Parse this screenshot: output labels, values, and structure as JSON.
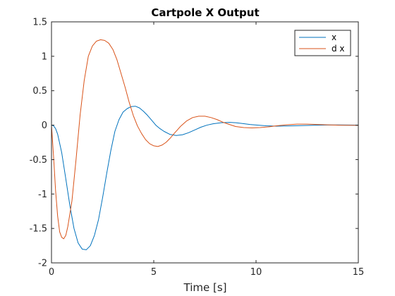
{
  "chart_data": {
    "type": "line",
    "title": "Cartpole X Output",
    "xlabel": "Time [s]",
    "ylabel": "",
    "xlim": [
      0,
      15
    ],
    "ylim": [
      -2,
      1.5
    ],
    "x_ticks": [
      0,
      5,
      10,
      15
    ],
    "x_tick_labels": [
      "0",
      "5",
      "10",
      "15"
    ],
    "y_ticks": [
      -2,
      -1.5,
      -1,
      -0.5,
      0,
      0.5,
      1,
      1.5
    ],
    "y_tick_labels": [
      "-2",
      "-1.5",
      "-1",
      "-0.5",
      "0",
      "0.5",
      "1",
      "1.5"
    ],
    "grid": false,
    "legend_position": "top-right",
    "series": [
      {
        "name": "x",
        "color": "#0072BD",
        "x": [
          0,
          0.1,
          0.2,
          0.3,
          0.5,
          0.7,
          0.9,
          1.1,
          1.3,
          1.5,
          1.7,
          1.9,
          2.1,
          2.3,
          2.5,
          2.7,
          2.9,
          3.1,
          3.3,
          3.5,
          3.7,
          3.9,
          4.1,
          4.3,
          4.5,
          4.7,
          4.9,
          5.1,
          5.3,
          5.5,
          5.8,
          6.1,
          6.4,
          6.7,
          7.0,
          7.3,
          7.6,
          7.9,
          8.3,
          8.7,
          9.0,
          9.3,
          9.7,
          10.1,
          10.5,
          11.0,
          11.5,
          12.0,
          12.5,
          13.0,
          13.5,
          14.0,
          14.5,
          15.0
        ],
        "values": [
          0,
          -0.01,
          -0.05,
          -0.13,
          -0.4,
          -0.78,
          -1.17,
          -1.5,
          -1.71,
          -1.8,
          -1.81,
          -1.75,
          -1.6,
          -1.37,
          -1.05,
          -0.7,
          -0.37,
          -0.09,
          0.08,
          0.19,
          0.24,
          0.27,
          0.275,
          0.25,
          0.2,
          0.14,
          0.07,
          0.0,
          -0.05,
          -0.09,
          -0.135,
          -0.15,
          -0.14,
          -0.11,
          -0.07,
          -0.03,
          0.0,
          0.02,
          0.035,
          0.04,
          0.035,
          0.025,
          0.01,
          0.0,
          -0.01,
          -0.015,
          -0.012,
          -0.008,
          -0.004,
          0.0,
          0.002,
          0.003,
          0.002,
          0.001
        ]
      },
      {
        "name": "d x",
        "color": "#D95319",
        "x": [
          0,
          0.1,
          0.2,
          0.3,
          0.4,
          0.5,
          0.6,
          0.7,
          0.8,
          1.0,
          1.2,
          1.4,
          1.6,
          1.8,
          2.0,
          2.2,
          2.4,
          2.6,
          2.8,
          3.0,
          3.2,
          3.4,
          3.6,
          3.8,
          4.0,
          4.2,
          4.4,
          4.6,
          4.8,
          5.0,
          5.2,
          5.4,
          5.6,
          5.8,
          6.0,
          6.3,
          6.6,
          6.9,
          7.2,
          7.5,
          7.8,
          8.1,
          8.4,
          8.7,
          9.0,
          9.4,
          9.8,
          10.2,
          10.6,
          11.0,
          11.5,
          12.0,
          12.5,
          13.0,
          13.5,
          14.0,
          14.5,
          15.0
        ],
        "values": [
          0,
          -0.45,
          -0.95,
          -1.32,
          -1.55,
          -1.63,
          -1.65,
          -1.6,
          -1.47,
          -1.1,
          -0.5,
          0.15,
          0.65,
          1.0,
          1.15,
          1.22,
          1.24,
          1.23,
          1.19,
          1.1,
          0.95,
          0.75,
          0.55,
          0.33,
          0.14,
          -0.01,
          -0.12,
          -0.21,
          -0.27,
          -0.3,
          -0.31,
          -0.29,
          -0.25,
          -0.19,
          -0.12,
          -0.02,
          0.06,
          0.11,
          0.13,
          0.13,
          0.11,
          0.08,
          0.04,
          0.01,
          -0.02,
          -0.035,
          -0.04,
          -0.035,
          -0.025,
          -0.01,
          0.005,
          0.015,
          0.015,
          0.01,
          0.004,
          0.0,
          -0.002,
          -0.003
        ]
      }
    ]
  }
}
